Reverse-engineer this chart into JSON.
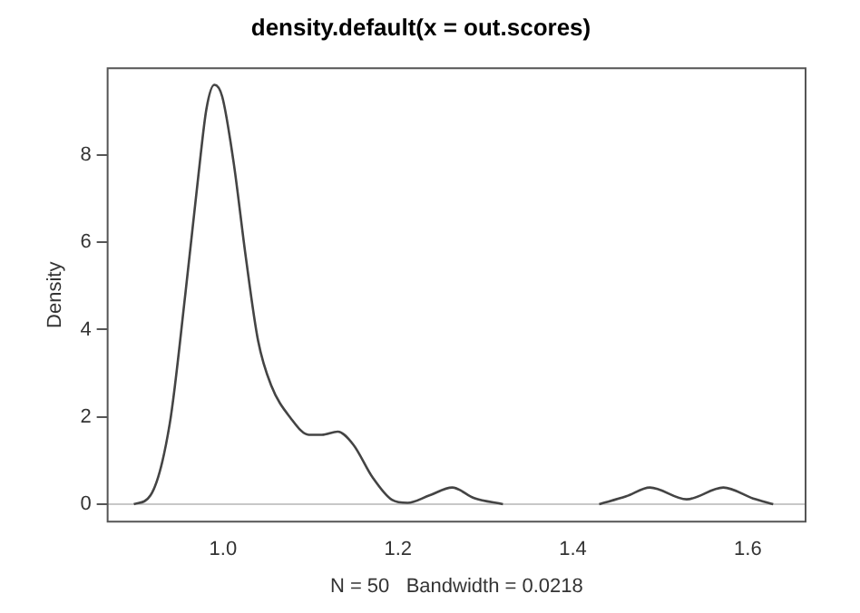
{
  "chart_data": {
    "type": "line",
    "title": "density.default(x = out.scores)",
    "xlabel": "N = 50   Bandwidth = 0.0218",
    "ylabel": "Density",
    "x": [
      0.898,
      0.917,
      0.939,
      0.957,
      0.972,
      0.981,
      0.99,
      0.999,
      1.012,
      1.026,
      1.04,
      1.055,
      1.077,
      1.098,
      1.113,
      1.131,
      1.149,
      1.171,
      1.193,
      1.211,
      1.236,
      1.262,
      1.287,
      1.32,
      1.375,
      1.43,
      1.461,
      1.488,
      1.53,
      1.572,
      1.606,
      1.629
    ],
    "series": [
      {
        "color": "#444444",
        "values": [
          0,
          0.2,
          1.84,
          4.84,
          7.57,
          9.06,
          9.61,
          9.34,
          7.84,
          5.66,
          3.75,
          2.72,
          1.98,
          1.59,
          1.59,
          1.66,
          1.36,
          0.61,
          0.1,
          0.03,
          0.2,
          0.38,
          0.14,
          0,
          null,
          0,
          0.18,
          0.38,
          0.11,
          0.38,
          0.13,
          0
        ]
      }
    ],
    "xlim": [
      0.868,
      1.666
    ],
    "ylim": [
      -0.4,
      9.99
    ],
    "xticks": [
      {
        "value": 1,
        "label": "1.0"
      },
      1.2,
      1.4,
      1.6
    ],
    "yticks": [
      0,
      2,
      4,
      6,
      8
    ],
    "ref_lines": [
      {
        "axis": "y",
        "value": 0,
        "color": "#c8c8c8"
      }
    ],
    "grid": false,
    "legend": false,
    "marker": "none",
    "line_style": "solid"
  }
}
